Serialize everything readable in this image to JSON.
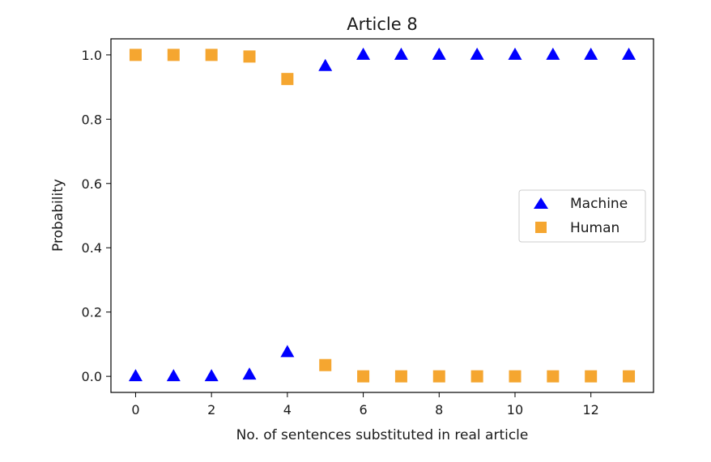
{
  "chart_data": {
    "type": "scatter",
    "title": "Article 8",
    "xlabel": "No. of sentences substituted in real article",
    "ylabel": "Probability",
    "xlim": [
      -0.65,
      13.65
    ],
    "ylim": [
      -0.05,
      1.05
    ],
    "x_ticks": [
      0,
      2,
      4,
      6,
      8,
      10,
      12
    ],
    "x_tick_labels": [
      "0",
      "2",
      "4",
      "6",
      "8",
      "10",
      "12"
    ],
    "y_ticks": [
      0.0,
      0.2,
      0.4,
      0.6,
      0.8,
      1.0
    ],
    "y_tick_labels": [
      "0.0",
      "0.2",
      "0.4",
      "0.6",
      "0.8",
      "1.0"
    ],
    "grid": false,
    "legend_position": "center-right",
    "x": [
      0,
      1,
      2,
      3,
      4,
      5,
      6,
      7,
      8,
      9,
      10,
      11,
      12,
      13
    ],
    "series": [
      {
        "name": "Machine",
        "marker": "triangle",
        "color": "#0000ff",
        "values": [
          0.0,
          0.0,
          0.0,
          0.005,
          0.075,
          0.965,
          1.0,
          1.0,
          1.0,
          1.0,
          1.0,
          1.0,
          1.0,
          1.0
        ]
      },
      {
        "name": "Human",
        "marker": "square",
        "color": "#f5a630",
        "values": [
          1.0,
          1.0,
          1.0,
          0.995,
          0.925,
          0.035,
          0.0,
          0.0,
          0.0,
          0.0,
          0.0,
          0.0,
          0.0,
          0.0
        ]
      }
    ]
  }
}
